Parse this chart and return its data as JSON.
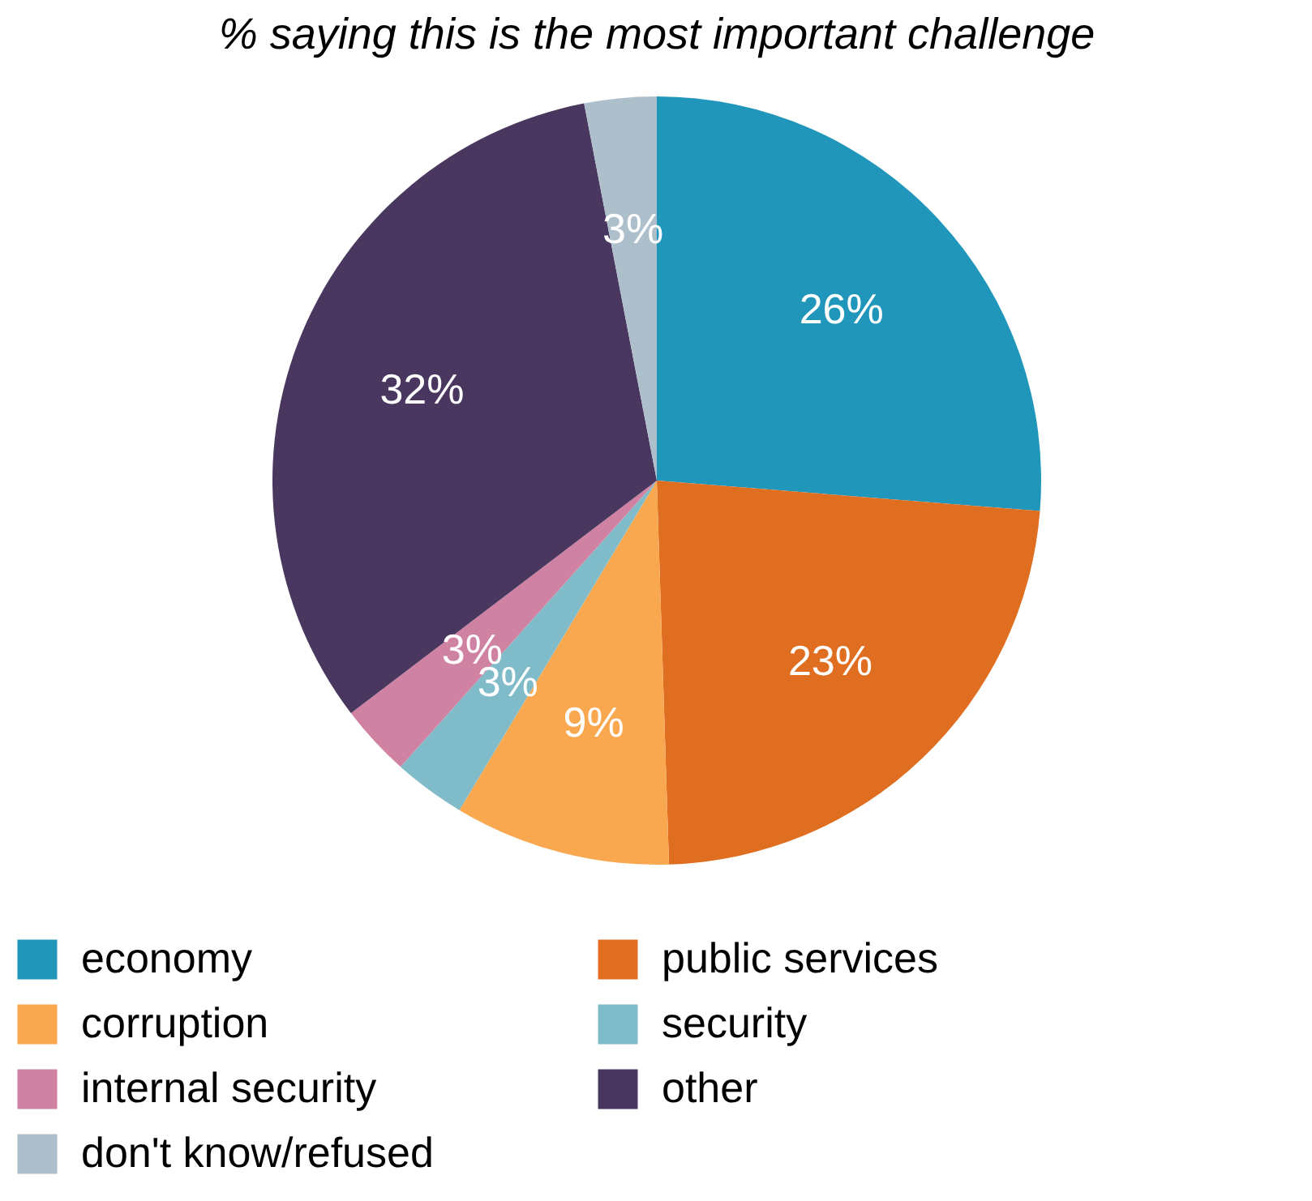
{
  "chart_data": {
    "type": "pie",
    "title": "% saying this is the most important challenge",
    "categories": [
      "economy",
      "public services",
      "corruption",
      "security",
      "internal security",
      "other",
      "don't know/refused"
    ],
    "values": [
      26,
      23,
      9,
      3,
      3,
      32,
      3
    ],
    "value_labels": [
      "26%",
      "23%",
      "9%",
      "3%",
      "3%",
      "32%",
      "3%"
    ],
    "colors": [
      "#2196bb",
      "#e06e20",
      "#f9a84f",
      "#7fbbc8",
      "#cf82a2",
      "#4a3760",
      "#aebfcc"
    ],
    "legend": "bottom"
  }
}
